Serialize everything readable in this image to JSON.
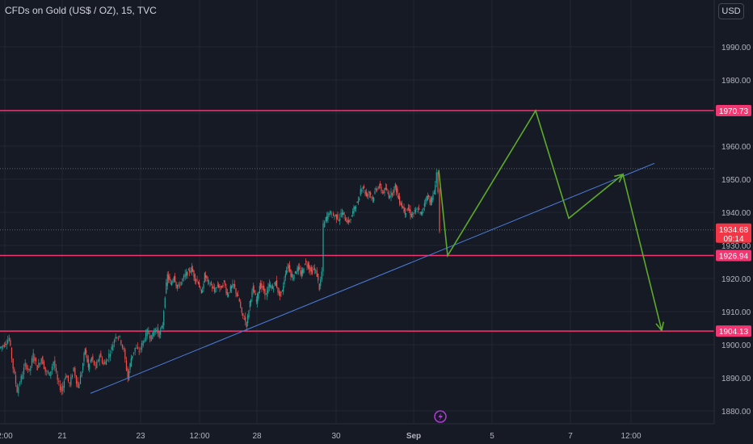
{
  "header": {
    "title": "CFDs on Gold (US$ / OZ), 15, TVC",
    "currency": "USD"
  },
  "chart_data": {
    "type": "candlestick",
    "ylim": [
      1877,
      1997
    ],
    "y_ticks": [
      1880,
      1890,
      1900,
      1910,
      1920,
      1930,
      1940,
      1950,
      1960,
      1970,
      1980,
      1990
    ],
    "y_tick_labels": [
      "1880.00",
      "1890.00",
      "1900.00",
      "1910.00",
      "1920.00",
      "1930.00",
      "1940.00",
      "1950.00",
      "1960.00",
      "1970.00",
      "1980.00",
      "1990.00"
    ],
    "x_labels": [
      {
        "label": "2:00",
        "x": 6
      },
      {
        "label": "21",
        "x": 77
      },
      {
        "label": "23",
        "x": 174
      },
      {
        "label": "12:00",
        "x": 247
      },
      {
        "label": "28",
        "x": 318
      },
      {
        "label": "30",
        "x": 416
      },
      {
        "label": "Sep",
        "x": 512
      },
      {
        "label": "5",
        "x": 609
      },
      {
        "label": "7",
        "x": 706
      },
      {
        "label": "12:00",
        "x": 781
      }
    ],
    "horizontal_levels": [
      {
        "value": 1970.73,
        "label": "1970.73",
        "color": "#f23672"
      },
      {
        "value": 1926.94,
        "label": "1926.94",
        "color": "#f23672"
      },
      {
        "value": 1904.13,
        "label": "1904.13",
        "color": "#f23672"
      }
    ],
    "current_price": {
      "value": 1934.68,
      "label": "1934.68",
      "countdown": "09:14",
      "color": "#f23645"
    },
    "dotted_levels": [
      1953.2,
      1934.68
    ],
    "trend_line": {
      "x1": 112,
      "v1": 1885.3,
      "x2": 810,
      "v2": 1954.8,
      "color": "#4d7fe0"
    },
    "projection_path": {
      "color": "#5cab2a",
      "points": [
        [
          543,
          1952.8
        ],
        [
          554,
          1926.9
        ],
        [
          663,
          1970.7
        ],
        [
          704,
          1938.2
        ],
        [
          771,
          1951.5
        ],
        [
          819,
          1904.3
        ]
      ]
    },
    "price_path": [
      [
        0,
        1899
      ],
      [
        6,
        1900
      ],
      [
        12,
        1902
      ],
      [
        17,
        1893
      ],
      [
        22,
        1886
      ],
      [
        27,
        1890
      ],
      [
        32,
        1894
      ],
      [
        37,
        1892
      ],
      [
        42,
        1897
      ],
      [
        47,
        1893
      ],
      [
        52,
        1896
      ],
      [
        57,
        1892
      ],
      [
        62,
        1891
      ],
      [
        67,
        1895
      ],
      [
        72,
        1889
      ],
      [
        77,
        1886
      ],
      [
        82,
        1891
      ],
      [
        87,
        1888
      ],
      [
        92,
        1893
      ],
      [
        97,
        1887
      ],
      [
        102,
        1892
      ],
      [
        106,
        1899
      ],
      [
        110,
        1893
      ],
      [
        114,
        1896
      ],
      [
        119,
        1893
      ],
      [
        124,
        1897
      ],
      [
        129,
        1894
      ],
      [
        134,
        1896
      ],
      [
        139,
        1899
      ],
      [
        144,
        1903
      ],
      [
        149,
        1902
      ],
      [
        154,
        1898
      ],
      [
        159,
        1890
      ],
      [
        163,
        1896
      ],
      [
        168,
        1899
      ],
      [
        173,
        1898
      ],
      [
        178,
        1901
      ],
      [
        183,
        1904
      ],
      [
        188,
        1902
      ],
      [
        193,
        1905
      ],
      [
        198,
        1903
      ],
      [
        202,
        1906
      ],
      [
        205,
        1915
      ],
      [
        208,
        1921
      ],
      [
        212,
        1918
      ],
      [
        216,
        1921
      ],
      [
        220,
        1917
      ],
      [
        225,
        1919
      ],
      [
        230,
        1921
      ],
      [
        234,
        1922
      ],
      [
        238,
        1923
      ],
      [
        242,
        1920
      ],
      [
        246,
        1919
      ],
      [
        250,
        1915
      ],
      [
        254,
        1921
      ],
      [
        258,
        1919
      ],
      [
        262,
        1918
      ],
      [
        266,
        1916
      ],
      [
        270,
        1918
      ],
      [
        274,
        1917
      ],
      [
        278,
        1919
      ],
      [
        282,
        1915
      ],
      [
        286,
        1917
      ],
      [
        290,
        1918
      ],
      [
        294,
        1915
      ],
      [
        297,
        1913
      ],
      [
        300,
        1909
      ],
      [
        303,
        1908
      ],
      [
        306,
        1906
      ],
      [
        310,
        1913
      ],
      [
        314,
        1917
      ],
      [
        318,
        1913
      ],
      [
        322,
        1918
      ],
      [
        326,
        1917
      ],
      [
        330,
        1915
      ],
      [
        334,
        1918
      ],
      [
        338,
        1917
      ],
      [
        342,
        1919
      ],
      [
        346,
        1915
      ],
      [
        350,
        1916
      ],
      [
        354,
        1922
      ],
      [
        358,
        1924
      ],
      [
        362,
        1920
      ],
      [
        366,
        1922
      ],
      [
        370,
        1923
      ],
      [
        374,
        1921
      ],
      [
        378,
        1925
      ],
      [
        382,
        1924
      ],
      [
        386,
        1922
      ],
      [
        390,
        1923
      ],
      [
        393,
        1921
      ],
      [
        396,
        1917
      ],
      [
        399,
        1922
      ],
      [
        401,
        1936
      ],
      [
        404,
        1938
      ],
      [
        408,
        1940
      ],
      [
        412,
        1939
      ],
      [
        416,
        1939
      ],
      [
        420,
        1938
      ],
      [
        424,
        1940
      ],
      [
        428,
        1938
      ],
      [
        432,
        1937
      ],
      [
        436,
        1939
      ],
      [
        440,
        1942
      ],
      [
        444,
        1943
      ],
      [
        447,
        1947
      ],
      [
        450,
        1948
      ],
      [
        454,
        1945
      ],
      [
        458,
        1946
      ],
      [
        462,
        1944
      ],
      [
        466,
        1947
      ],
      [
        470,
        1948
      ],
      [
        474,
        1946
      ],
      [
        478,
        1947
      ],
      [
        482,
        1945
      ],
      [
        486,
        1946
      ],
      [
        490,
        1948
      ],
      [
        494,
        1944
      ],
      [
        498,
        1942
      ],
      [
        502,
        1940
      ],
      [
        506,
        1941
      ],
      [
        510,
        1939
      ],
      [
        514,
        1940
      ],
      [
        518,
        1941
      ],
      [
        522,
        1939
      ],
      [
        526,
        1943
      ],
      [
        530,
        1945
      ],
      [
        534,
        1943
      ],
      [
        538,
        1946
      ],
      [
        541,
        1952
      ],
      [
        543,
        1946
      ],
      [
        545,
        1934.7
      ]
    ]
  }
}
